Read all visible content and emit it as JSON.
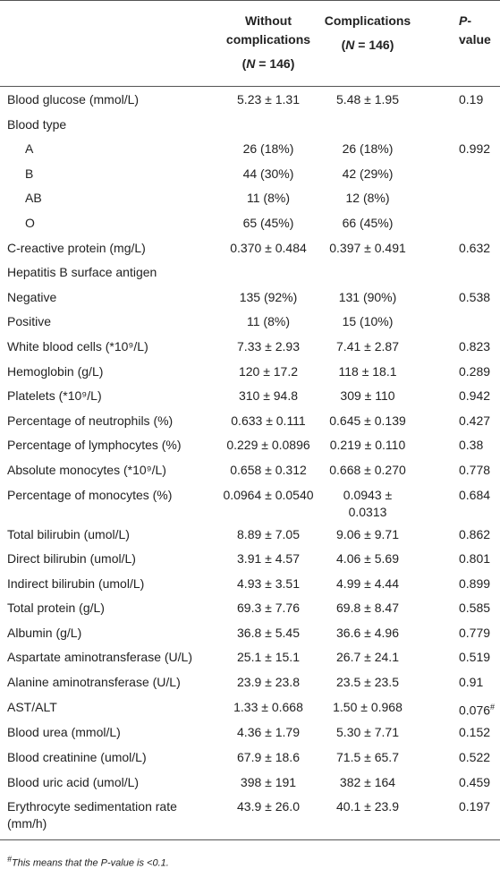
{
  "table": {
    "header": [
      {
        "title": "Without complications",
        "n": [
          {
            "t": "("
          },
          {
            "t": "N",
            "i": true
          },
          {
            "t": " = 146)"
          }
        ]
      },
      {
        "title": "Complications",
        "n": [
          {
            "t": "("
          },
          {
            "t": "N",
            "i": true
          },
          {
            "t": " = 146)"
          }
        ]
      },
      {
        "title": [
          {
            "t": "P",
            "i": true
          },
          {
            "t": "-value"
          }
        ]
      }
    ],
    "rows": [
      {
        "cells": [
          "Blood glucose (mmol/L)",
          "5.23 ± 1.31",
          "5.48 ± 1.95",
          "0.19"
        ]
      },
      {
        "cells": [
          "Blood type"
        ]
      },
      {
        "cells": [
          "A",
          "26 (18%)",
          "26 (18%)",
          "0.992"
        ],
        "indent": true
      },
      {
        "cells": [
          "B",
          "44 (30%)",
          "42 (29%)"
        ],
        "indent": true
      },
      {
        "cells": [
          "AB",
          "11 (8%)",
          "12 (8%)"
        ],
        "indent": true
      },
      {
        "cells": [
          "O",
          "65 (45%)",
          "66 (45%)"
        ],
        "indent": true
      },
      {
        "cells": [
          "C-reactive protein (mg/L)",
          "0.370 ± 0.484",
          "0.397 ± 0.491",
          "0.632"
        ]
      },
      {
        "cells": [
          "Hepatitis B surface antigen"
        ]
      },
      {
        "cells": [
          "Negative",
          "135 (92%)",
          "131 (90%)",
          "0.538"
        ]
      },
      {
        "cells": [
          "Positive",
          "11 (8%)",
          "15 (10%)"
        ]
      },
      {
        "cells": [
          "White blood cells (*10⁹/L)",
          "7.33 ± 2.93",
          "7.41 ± 2.87",
          "0.823"
        ]
      },
      {
        "cells": [
          "Hemoglobin (g/L)",
          "120 ± 17.2",
          "118 ± 18.1",
          "0.289"
        ]
      },
      {
        "cells": [
          "Platelets (*10⁹/L)",
          "310 ± 94.8",
          "309 ± 110",
          "0.942"
        ]
      },
      {
        "cells": [
          "Percentage of neutrophils (%)",
          "0.633 ± 0.111",
          "0.645 ± 0.139",
          "0.427"
        ]
      },
      {
        "cells": [
          "Percentage of lymphocytes (%)",
          "0.229 ± 0.0896",
          "0.219 ± 0.110",
          "0.38"
        ]
      },
      {
        "cells": [
          "Absolute monocytes (*10⁹/L)",
          "0.658 ± 0.312",
          "0.668 ± 0.270",
          "0.778"
        ]
      },
      {
        "cells": [
          "Percentage of monocytes (%)",
          "0.0964 ± 0.0540",
          "0.0943 ± 0.0313",
          "0.684"
        ]
      },
      {
        "cells": [
          "Total bilirubin (umol/L)",
          "8.89 ± 7.05",
          "9.06 ± 9.71",
          "0.862"
        ]
      },
      {
        "cells": [
          "Direct bilirubin (umol/L)",
          "3.91 ± 4.57",
          "4.06 ± 5.69",
          "0.801"
        ]
      },
      {
        "cells": [
          "Indirect bilirubin (umol/L)",
          "4.93 ± 3.51",
          "4.99 ± 4.44",
          "0.899"
        ]
      },
      {
        "cells": [
          "Total protein (g/L)",
          "69.3 ± 7.76",
          "69.8 ± 8.47",
          "0.585"
        ]
      },
      {
        "cells": [
          "Albumin (g/L)",
          "36.8 ± 5.45",
          "36.6 ± 4.96",
          "0.779"
        ]
      },
      {
        "cells": [
          "Aspartate aminotransferase (U/L)",
          "25.1 ± 15.1",
          "26.7 ± 24.1",
          "0.519"
        ]
      },
      {
        "cells": [
          "Alanine aminotransferase (U/L)",
          "23.9 ± 23.8",
          "23.5 ± 23.5",
          "0.91"
        ]
      },
      {
        "cells": [
          "AST/ALT",
          "1.33 ± 0.668",
          "1.50 ± 0.968",
          {
            "text": "0.076",
            "sup": "#"
          }
        ]
      },
      {
        "cells": [
          "Blood urea (mmol/L)",
          "4.36 ± 1.79",
          "5.30 ± 7.71",
          "0.152"
        ]
      },
      {
        "cells": [
          "Blood creatinine (umol/L)",
          "67.9 ± 18.6",
          "71.5 ± 65.7",
          "0.522"
        ]
      },
      {
        "cells": [
          "Blood uric acid (umol/L)",
          "398 ± 191",
          "382 ± 164",
          "0.459"
        ]
      },
      {
        "cells": [
          "Erythrocyte sedimentation rate (mm/h)",
          "43.9 ± 26.0",
          "40.1 ± 23.9",
          "0.197"
        ]
      }
    ],
    "footnote": {
      "mark": "#",
      "text": "This means that the P-value is <0.1."
    }
  }
}
